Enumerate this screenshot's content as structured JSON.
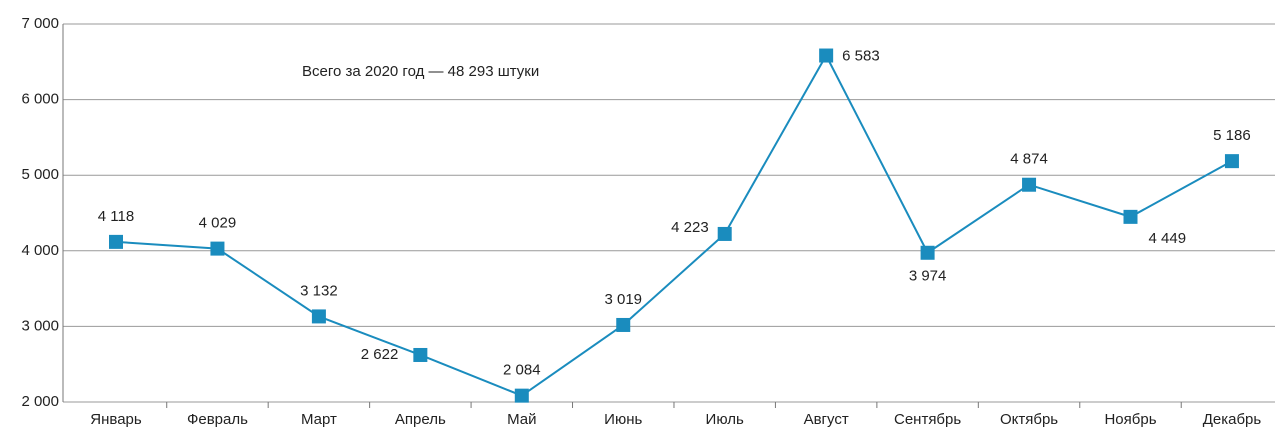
{
  "chart_data": {
    "type": "line",
    "annotation": "Всего за 2020 год — 48 293 штуки",
    "categories": [
      "Январь",
      "Февраль",
      "Март",
      "Апрель",
      "Май",
      "Июнь",
      "Июль",
      "Август",
      "Сентябрь",
      "Октябрь",
      "Ноябрь",
      "Декабрь"
    ],
    "series": [
      {
        "color": "#1a8cbe",
        "values": [
          4118,
          4029,
          3132,
          2622,
          2084,
          3019,
          4223,
          6583,
          3974,
          4874,
          4449,
          5186
        ],
        "value_labels": [
          "4 118",
          "4 029",
          "3 132",
          "2 622",
          "2 084",
          "3 019",
          "4 223",
          "6 583",
          "3 974",
          "4 874",
          "4 449",
          "5 186"
        ]
      }
    ],
    "ylim": [
      2000,
      7000
    ],
    "yticks": [
      {
        "value": 2000,
        "label": "2 000"
      },
      {
        "value": 3000,
        "label": "3 000"
      },
      {
        "value": 4000,
        "label": "4 000"
      },
      {
        "value": 5000,
        "label": "5 000"
      },
      {
        "value": 6000,
        "label": "6 000"
      },
      {
        "value": 7000,
        "label": "7 000"
      }
    ],
    "grid": true
  }
}
